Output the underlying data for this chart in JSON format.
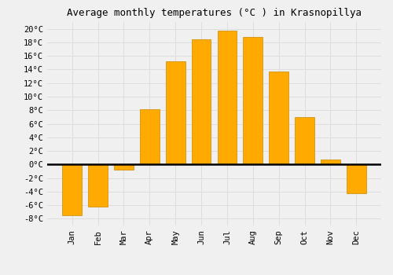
{
  "title": "Average monthly temperatures (°C ) in Krasnopillya",
  "months": [
    "Jan",
    "Feb",
    "Mar",
    "Apr",
    "May",
    "Jun",
    "Jul",
    "Aug",
    "Sep",
    "Oct",
    "Nov",
    "Dec"
  ],
  "temperatures": [
    -7.5,
    -6.2,
    -0.8,
    8.2,
    15.2,
    18.5,
    19.7,
    18.8,
    13.7,
    7.0,
    0.7,
    -4.3
  ],
  "bar_color": "#FFAA00",
  "bar_edge_color": "#CC8800",
  "ylim": [
    -9,
    21
  ],
  "yticks": [
    -8,
    -6,
    -4,
    -2,
    0,
    2,
    4,
    6,
    8,
    10,
    12,
    14,
    16,
    18,
    20
  ],
  "background_color": "#F0F0F0",
  "grid_color": "#DDDDDD",
  "title_fontsize": 9,
  "tick_fontsize": 7.5,
  "font_family": "monospace"
}
